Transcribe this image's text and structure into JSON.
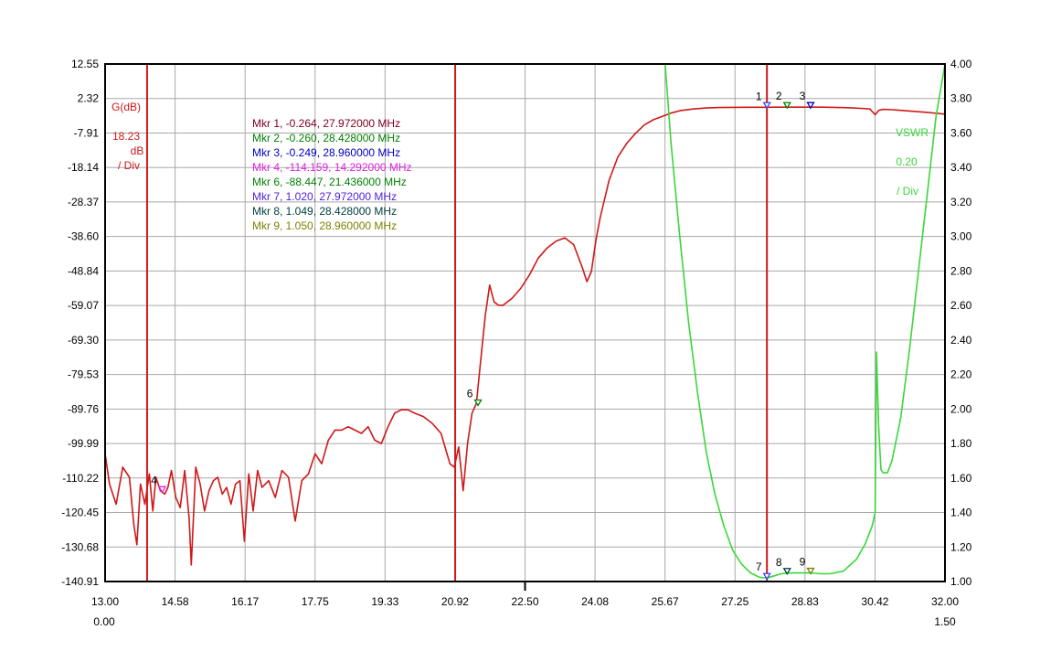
{
  "chart_data": {
    "type": "line",
    "x_axis": {
      "min": 13.0,
      "max": 32.0,
      "tick_labels": [
        "13.00",
        "14.58",
        "16.17",
        "17.75",
        "19.33",
        "20.92",
        "22.50",
        "24.08",
        "25.67",
        "27.25",
        "28.83",
        "30.42",
        "32.00"
      ],
      "secondary_min_label": "0.00",
      "secondary_max_label": "1.50"
    },
    "left_axis": {
      "min": -140.91,
      "max": 12.55,
      "tick_labels": [
        "12.55",
        "2.32",
        "-7.91",
        "-18.14",
        "-28.37",
        "-38.60",
        "-48.84",
        "-59.07",
        "-69.30",
        "-79.53",
        "-89.76",
        "-99.99",
        "-110.22",
        "-120.45",
        "-130.68",
        "-140.91"
      ],
      "name": "G(dB)",
      "scale_value": "18.23",
      "scale_unit": "dB",
      "scale_per": "/ Div",
      "color": "#d01818"
    },
    "right_axis": {
      "min": 1.0,
      "max": 4.0,
      "tick_labels": [
        "4.00",
        "3.80",
        "3.60",
        "3.40",
        "3.20",
        "3.00",
        "2.80",
        "2.60",
        "2.40",
        "2.20",
        "2.00",
        "1.80",
        "1.60",
        "1.40",
        "1.20",
        "1.00"
      ],
      "name": "VSWR",
      "scale_value": "0.20",
      "scale_per": "/ Div",
      "color": "#38d838"
    },
    "grid": true,
    "vertical_markers_mhz": [
      13.95,
      20.92,
      27.972
    ],
    "marker_list": [
      {
        "text": "Mkr 1, -0.264, 27.972000 MHz",
        "color": "#800020"
      },
      {
        "text": "Mkr 2, -0.260, 28.428000 MHz",
        "color": "#008000"
      },
      {
        "text": "Mkr 3, -0.249, 28.960000 MHz",
        "color": "#0000c0"
      },
      {
        "text": "Mkr 4, -114.159, 14.292000 MHz",
        "color": "#e020e0"
      },
      {
        "text": "Mkr 6, -88.447, 21.436000 MHz",
        "color": "#008000"
      },
      {
        "text": "Mkr 7, 1.020, 27.972000 MHz",
        "color": "#5020e0"
      },
      {
        "text": "Mkr 8, 1.049, 28.428000 MHz",
        "color": "#004040"
      },
      {
        "text": "Mkr 9, 1.050, 28.960000 MHz",
        "color": "#808000"
      }
    ],
    "markers": [
      {
        "label": "1",
        "x": 27.972,
        "y": -0.264,
        "axis": "left",
        "color": "#4040ff"
      },
      {
        "label": "2",
        "x": 28.428,
        "y": -0.26,
        "axis": "left",
        "color": "#008000"
      },
      {
        "label": "3",
        "x": 28.96,
        "y": -0.249,
        "axis": "left",
        "color": "#0000c0"
      },
      {
        "label": "4",
        "x": 14.292,
        "y": -114.159,
        "axis": "left",
        "color": "#e020e0"
      },
      {
        "label": "6",
        "x": 21.436,
        "y": -88.447,
        "axis": "left",
        "color": "#008000"
      },
      {
        "label": "7",
        "x": 27.972,
        "y": 1.02,
        "axis": "right",
        "color": "#4040ff"
      },
      {
        "label": "8",
        "x": 28.428,
        "y": 1.049,
        "axis": "right",
        "color": "#004040"
      },
      {
        "label": "9",
        "x": 28.96,
        "y": 1.05,
        "axis": "right",
        "color": "#808000"
      }
    ],
    "series": [
      {
        "axis": "left",
        "color": "#d01818",
        "x": [
          13.0,
          13.1,
          13.25,
          13.4,
          13.55,
          13.65,
          13.72,
          13.8,
          13.9,
          14.0,
          14.08,
          14.15,
          14.25,
          14.35,
          14.42,
          14.5,
          14.6,
          14.7,
          14.8,
          14.9,
          14.95,
          15.05,
          15.15,
          15.25,
          15.35,
          15.45,
          15.55,
          15.65,
          15.75,
          15.85,
          15.95,
          16.05,
          16.15,
          16.25,
          16.35,
          16.45,
          16.55,
          16.7,
          16.85,
          17.0,
          17.15,
          17.3,
          17.45,
          17.6,
          17.75,
          17.9,
          18.05,
          18.2,
          18.35,
          18.5,
          18.65,
          18.8,
          18.95,
          19.1,
          19.25,
          19.4,
          19.55,
          19.7,
          19.85,
          20.0,
          20.2,
          20.4,
          20.6,
          20.8,
          20.9,
          21.0,
          21.1,
          21.2,
          21.3,
          21.4,
          21.5,
          21.6,
          21.7,
          21.8,
          21.9,
          22.0,
          22.2,
          22.4,
          22.6,
          22.8,
          23.0,
          23.2,
          23.4,
          23.6,
          23.8,
          23.9,
          24.0,
          24.1,
          24.2,
          24.4,
          24.6,
          24.8,
          25.0,
          25.2,
          25.4,
          25.6,
          25.8,
          26.0,
          26.3,
          26.6,
          26.9,
          27.2,
          27.5,
          27.8,
          27.972,
          28.2,
          28.428,
          28.7,
          28.96,
          29.2,
          29.5,
          29.8,
          30.1,
          30.3,
          30.42,
          30.5,
          30.6,
          30.8,
          31.0,
          31.3,
          31.6,
          32.0
        ],
        "y": [
          -103,
          -112,
          -118,
          -107,
          -110,
          -124,
          -130,
          -112,
          -118,
          -109,
          -120,
          -110,
          -114,
          -115,
          -113,
          -108,
          -116,
          -119,
          -108,
          -122,
          -136,
          -107,
          -112,
          -120,
          -114,
          -111,
          -110,
          -115,
          -113,
          -118,
          -112,
          -111,
          -129,
          -109,
          -120,
          -108,
          -113,
          -111,
          -116,
          -108,
          -110,
          -123,
          -111,
          -109,
          -103,
          -106,
          -99,
          -96,
          -96,
          -95,
          -96,
          -97,
          -95,
          -99,
          -100,
          -95,
          -91,
          -90,
          -90,
          -91,
          -92,
          -94,
          -97,
          -106,
          -107,
          -101,
          -114,
          -100,
          -91,
          -88,
          -75,
          -62,
          -53,
          -58,
          -59,
          -59,
          -57,
          -54,
          -50,
          -45,
          -42,
          -40,
          -39,
          -41,
          -48,
          -52,
          -49,
          -40,
          -33,
          -22,
          -15,
          -11,
          -8,
          -5.5,
          -4,
          -3,
          -2,
          -1.3,
          -0.8,
          -0.5,
          -0.35,
          -0.3,
          -0.28,
          -0.27,
          -0.264,
          -0.26,
          -0.26,
          -0.25,
          -0.249,
          -0.26,
          -0.3,
          -0.4,
          -0.6,
          -0.8,
          -2.5,
          -1.2,
          -0.9,
          -1.0,
          -1.2,
          -1.5,
          -1.8,
          -2.3
        ]
      },
      {
        "axis": "right",
        "color": "#38d838",
        "x": [
          25.67,
          25.8,
          26.0,
          26.2,
          26.4,
          26.6,
          26.8,
          27.0,
          27.2,
          27.4,
          27.6,
          27.8,
          27.972,
          28.1,
          28.3,
          28.428,
          28.6,
          28.8,
          28.96,
          29.2,
          29.4,
          29.7,
          30.0,
          30.2,
          30.35,
          30.42,
          30.45,
          30.5,
          30.55,
          30.6,
          30.7,
          30.8,
          31.0,
          31.2,
          31.4,
          31.6,
          31.8,
          32.0
        ],
        "y": [
          4.0,
          3.55,
          3.0,
          2.5,
          2.1,
          1.75,
          1.5,
          1.32,
          1.18,
          1.1,
          1.05,
          1.025,
          1.02,
          1.03,
          1.045,
          1.049,
          1.05,
          1.05,
          1.05,
          1.045,
          1.045,
          1.06,
          1.13,
          1.22,
          1.32,
          1.4,
          2.33,
          1.9,
          1.65,
          1.63,
          1.63,
          1.7,
          1.95,
          2.35,
          2.8,
          3.25,
          3.7,
          4.0
        ]
      }
    ]
  }
}
